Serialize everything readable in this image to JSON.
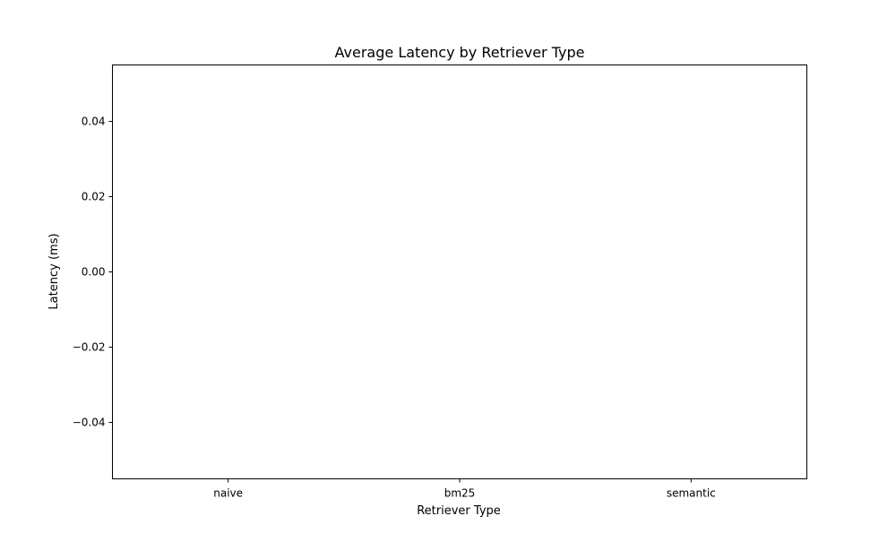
{
  "chart_data": {
    "type": "bar",
    "title": "Average Latency by Retriever Type",
    "xlabel": "Retriever Type",
    "ylabel": "Latency (ms)",
    "categories": [
      "naive",
      "bm25",
      "semantic"
    ],
    "values": [
      0,
      0,
      0
    ],
    "ylim": [
      -0.055,
      0.055
    ],
    "yticks": [
      -0.04,
      -0.02,
      0.0,
      0.02,
      0.04
    ],
    "ytick_labels": [
      "−0.04",
      "−0.02",
      "0.00",
      "0.02",
      "0.04"
    ],
    "grid": false,
    "legend": "none",
    "bar_color": "#1f77b4"
  }
}
